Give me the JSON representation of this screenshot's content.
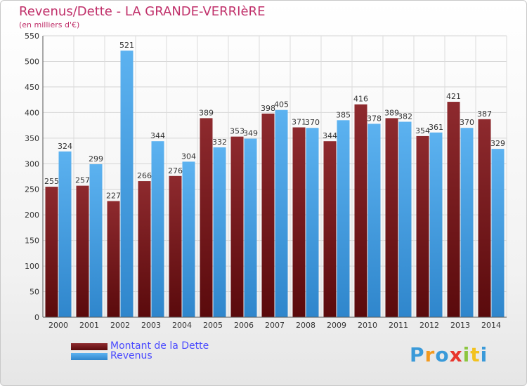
{
  "title": "Revenus/Dette - LA GRANDE-VERRIèRE",
  "subtitle": "(en milliers d'€)",
  "logo_text": "Proxiti",
  "chart_data": {
    "type": "bar",
    "categories": [
      "2000",
      "2001",
      "2002",
      "2003",
      "2004",
      "2005",
      "2006",
      "2007",
      "2008",
      "2009",
      "2010",
      "2011",
      "2012",
      "2013",
      "2014"
    ],
    "series": [
      {
        "name": "Montant de la Dette",
        "color": "#7b1f22",
        "values": [
          255,
          257,
          227,
          266,
          276,
          389,
          353,
          398,
          371,
          344,
          416,
          389,
          354,
          421,
          387
        ]
      },
      {
        "name": "Revenus",
        "color": "#4aa3e6",
        "values": [
          324,
          299,
          521,
          344,
          304,
          332,
          349,
          405,
          370,
          385,
          378,
          382,
          361,
          370,
          329
        ]
      }
    ],
    "ylim": [
      0,
      550
    ],
    "yticks": [
      0,
      50,
      100,
      150,
      200,
      250,
      300,
      350,
      400,
      450,
      500,
      550
    ],
    "grid": true,
    "legend_position": "bottom-left"
  }
}
